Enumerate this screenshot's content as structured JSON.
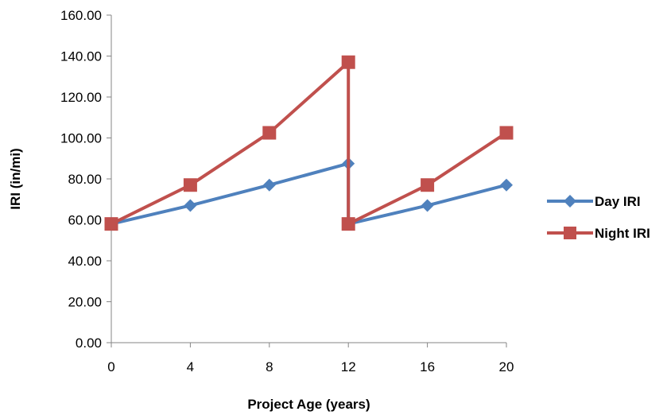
{
  "chart_data": {
    "type": "line",
    "xlabel": "Project Age (years)",
    "ylabel": "IRI (in/mi)",
    "xlim": [
      0,
      20
    ],
    "ylim": [
      0,
      160
    ],
    "x_ticks": [
      "0",
      "4",
      "8",
      "12",
      "16",
      "20"
    ],
    "y_ticks": [
      "0.00",
      "20.00",
      "40.00",
      "60.00",
      "80.00",
      "100.00",
      "120.00",
      "140.00",
      "160.00"
    ],
    "grid": false,
    "legend_position": "right",
    "series": [
      {
        "name": "Day IRI",
        "color": "#4F81BD",
        "marker": "diamond",
        "points": [
          {
            "x": 0,
            "y": 58.0
          },
          {
            "x": 4,
            "y": 67.0
          },
          {
            "x": 8,
            "y": 77.0
          },
          {
            "x": 12,
            "y": 87.5
          },
          {
            "x": 12,
            "y": 58.0
          },
          {
            "x": 16,
            "y": 67.0
          },
          {
            "x": 20,
            "y": 77.0
          }
        ]
      },
      {
        "name": "Night IRI",
        "color": "#C0504D",
        "marker": "square",
        "points": [
          {
            "x": 0,
            "y": 58.0
          },
          {
            "x": 4,
            "y": 77.0
          },
          {
            "x": 8,
            "y": 102.5
          },
          {
            "x": 12,
            "y": 137.0
          },
          {
            "x": 12,
            "y": 58.0
          },
          {
            "x": 16,
            "y": 77.0
          },
          {
            "x": 20,
            "y": 102.5
          }
        ]
      }
    ]
  }
}
